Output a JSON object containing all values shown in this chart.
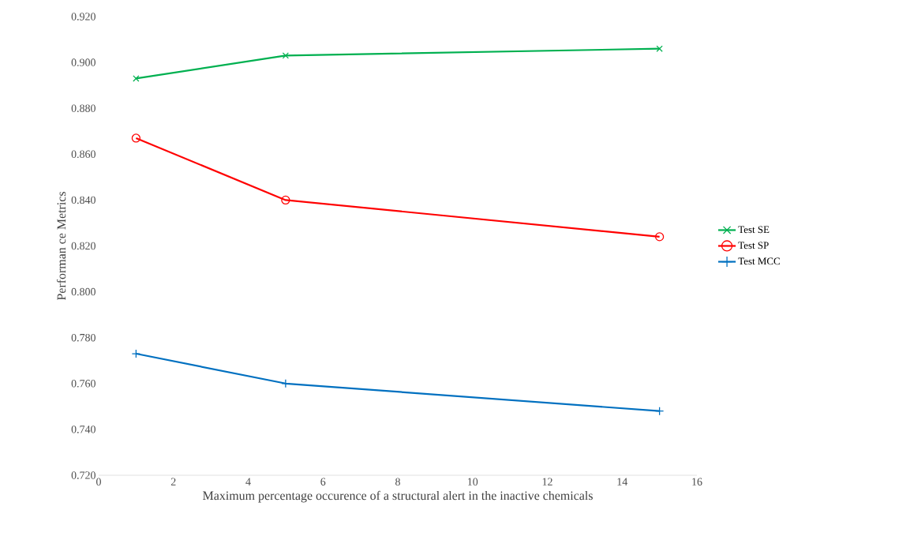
{
  "chart_data": {
    "type": "line",
    "xlabel": "Maximum percentage occurence of a structural alert in the inactive chemicals",
    "ylabel": "Performan ce Metrics",
    "x": [
      1,
      5,
      15
    ],
    "series": [
      {
        "name": "Test SE",
        "color": "#00b050",
        "marker": "cross",
        "values": [
          0.893,
          0.903,
          0.906
        ]
      },
      {
        "name": "Test SP",
        "color": "#ff0000",
        "marker": "circle",
        "values": [
          0.867,
          0.84,
          0.824
        ]
      },
      {
        "name": "Test MCC",
        "color": "#0070c0",
        "marker": "plus",
        "values": [
          0.773,
          0.76,
          0.748
        ]
      }
    ],
    "xlim": [
      0,
      16
    ],
    "xticks": [
      0,
      2,
      4,
      6,
      8,
      10,
      12,
      14,
      16
    ],
    "ylim": [
      0.72,
      0.92
    ],
    "yticks": [
      {
        "value": 0.72,
        "label": "0.720"
      },
      {
        "value": 0.74,
        "label": "0.740"
      },
      {
        "value": 0.76,
        "label": "0.760"
      },
      {
        "value": 0.78,
        "label": "0.780"
      },
      {
        "value": 0.8,
        "label": "0.800"
      },
      {
        "value": 0.82,
        "label": "0.820"
      },
      {
        "value": 0.84,
        "label": "0.840"
      },
      {
        "value": 0.86,
        "label": "0.860"
      },
      {
        "value": 0.88,
        "label": "0.880"
      },
      {
        "value": 0.9,
        "label": "0.900"
      },
      {
        "value": 0.92,
        "label": "0.920"
      }
    ],
    "grid": false,
    "legend": "right",
    "line_style": "solid"
  }
}
